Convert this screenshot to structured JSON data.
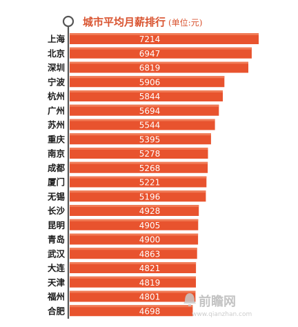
{
  "chart_data": {
    "type": "bar",
    "orientation": "horizontal",
    "title": "城市平均月薪排行",
    "unit": "(单位:元)",
    "categories": [
      "上海",
      "北京",
      "深圳",
      "宁波",
      "杭州",
      "广州",
      "苏州",
      "重庆",
      "南京",
      "成都",
      "厦门",
      "无锡",
      "长沙",
      "昆明",
      "青岛",
      "武汉",
      "大连",
      "天津",
      "福州",
      "合肥"
    ],
    "values": [
      7214,
      6947,
      6819,
      5906,
      5844,
      5694,
      5544,
      5395,
      5278,
      5268,
      5221,
      5196,
      4928,
      4905,
      4900,
      4863,
      4821,
      4819,
      4801,
      4698
    ],
    "data_labels": [
      "7214",
      "6947",
      "6819",
      "5906",
      "5844",
      "5694",
      "5544",
      "5395",
      "5278",
      "5268",
      "5221",
      "5196",
      "4928",
      "4905",
      "4900",
      "4863",
      "4821",
      "4819",
      "4801",
      "4698"
    ],
    "xlim": [
      0,
      7214
    ],
    "grid": false,
    "legend": "none",
    "colors": {
      "bar": "#e8532e",
      "bar_highlight": "#f07a55",
      "title": "#d9532f",
      "category_text": "#1a1a1a",
      "value_text": "#ffffff",
      "background": "#ffffff"
    }
  },
  "watermark": {
    "logo_icon": "bell-logo-icon",
    "text": "前瞻网",
    "url": "www.qianzhan.com"
  }
}
